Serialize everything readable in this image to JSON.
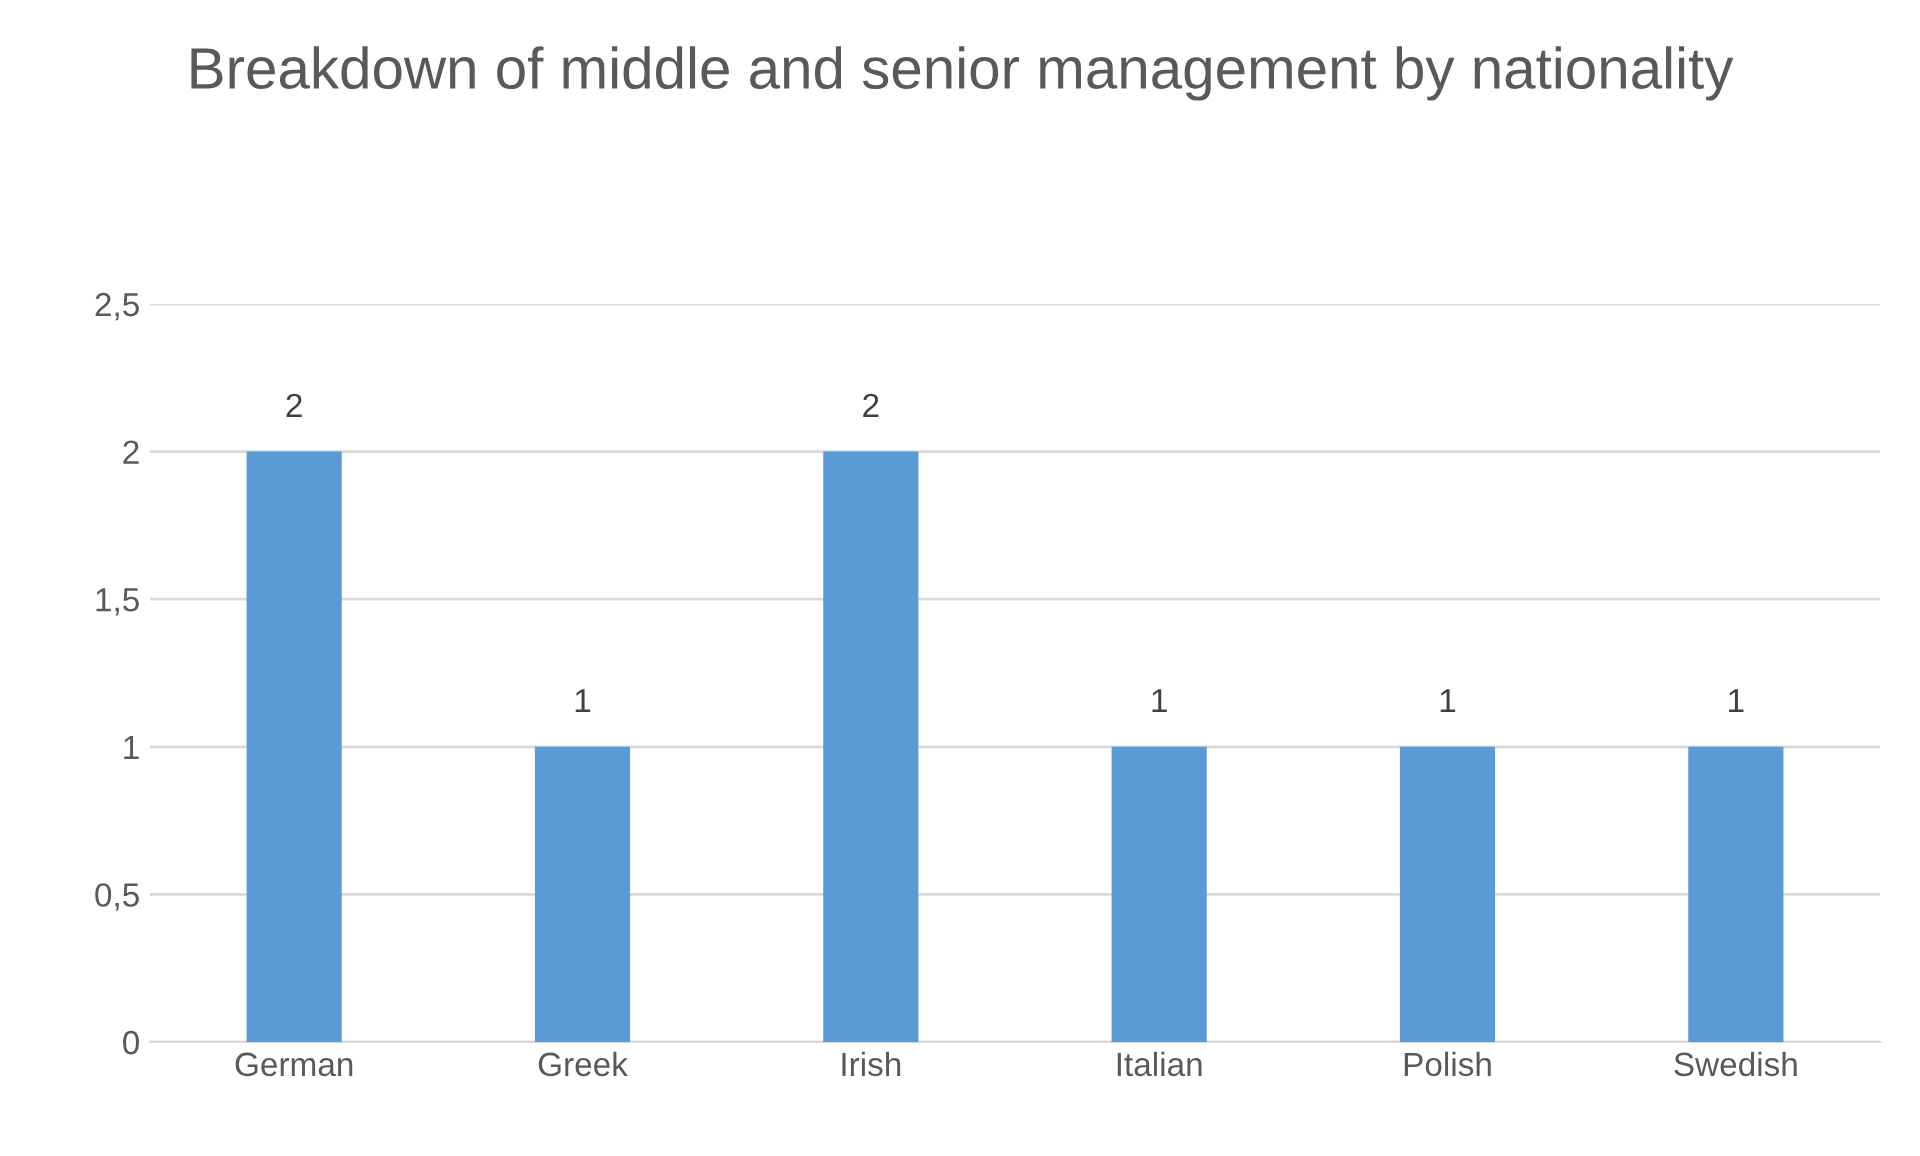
{
  "chart_data": {
    "type": "bar",
    "title": "Breakdown of middle and senior management by nationality",
    "categories": [
      "German",
      "Greek",
      "Irish",
      "Italian",
      "Polish",
      "Swedish"
    ],
    "values": [
      2,
      1,
      2,
      1,
      1,
      1
    ],
    "color": "#5b9bd5",
    "ylim": [
      0,
      2.5
    ],
    "yticks": [
      0,
      {
        "value": 0.5,
        "label": "0,5"
      },
      1,
      {
        "value": 1.5,
        "label": "1,5"
      },
      2,
      {
        "value": 2.5,
        "label": "2,5"
      }
    ],
    "grid": "y",
    "data_labels": true
  }
}
